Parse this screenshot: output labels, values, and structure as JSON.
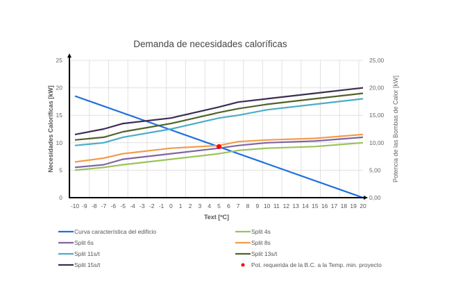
{
  "chart_data": {
    "type": "line",
    "title": "Demanda de necesidades caloríficas",
    "xlabel": "Text [ºC]",
    "ylabel": "Necesidades Caloríficas [kW]",
    "y2label": "Potencia de las Bombas de Calor [kW]",
    "xlim": [
      -10,
      20
    ],
    "ylim": [
      0,
      25
    ],
    "y2lim": [
      0,
      25
    ],
    "x_ticks": [
      -10,
      -9,
      -8,
      -7,
      -6,
      -5,
      -4,
      -3,
      -2,
      -1,
      0,
      1,
      2,
      3,
      4,
      5,
      6,
      7,
      8,
      9,
      10,
      11,
      12,
      13,
      14,
      15,
      16,
      17,
      18,
      19,
      20
    ],
    "y_ticks": [
      "0",
      "5",
      "10",
      "15",
      "20",
      "25"
    ],
    "y2_ticks": [
      "0,00",
      "5,00",
      "10,00",
      "15,00",
      "20,00",
      "25,00"
    ],
    "grid": true,
    "legend_placement": "bottom",
    "series": [
      {
        "name": "Curva característica del edificio",
        "color": "#1f6fe0",
        "x": [
          -10,
          20
        ],
        "y": [
          18.5,
          0
        ]
      },
      {
        "name": "Split 4s",
        "color": "#9bc35a",
        "x": [
          -10,
          -7,
          -5,
          0,
          5,
          7,
          10,
          15,
          20
        ],
        "y": [
          5,
          5.5,
          6,
          7,
          8,
          8.6,
          9,
          9.3,
          10
        ]
      },
      {
        "name": "Split 6s",
        "color": "#8064a2",
        "x": [
          -10,
          -7,
          -5,
          0,
          5,
          7,
          10,
          15,
          20
        ],
        "y": [
          5.5,
          6,
          7,
          8,
          9,
          9.5,
          10,
          10.3,
          11
        ]
      },
      {
        "name": "Split 8s",
        "color": "#f39b4a",
        "x": [
          -10,
          -7,
          -5,
          0,
          5,
          7,
          10,
          15,
          20
        ],
        "y": [
          6.5,
          7.2,
          8,
          9,
          9.5,
          10.2,
          10.5,
          10.8,
          11.5
        ]
      },
      {
        "name": "Split 11s/t",
        "color": "#4bacc6",
        "x": [
          -10,
          -7,
          -5,
          0,
          5,
          7,
          10,
          15,
          20
        ],
        "y": [
          9.5,
          10,
          11,
          12.5,
          14.5,
          15,
          16,
          17,
          18
        ]
      },
      {
        "name": "Split 13s/t",
        "color": "#4f6228",
        "x": [
          -10,
          -7,
          -5,
          0,
          5,
          7,
          10,
          15,
          20
        ],
        "y": [
          10.5,
          11,
          12,
          13.5,
          15.5,
          16.2,
          17,
          18,
          19
        ]
      },
      {
        "name": "Split 15s/t",
        "color": "#3b2d52",
        "x": [
          -10,
          -7,
          -5,
          0,
          5,
          7,
          10,
          15,
          20
        ],
        "y": [
          11.5,
          12.5,
          13.5,
          14.5,
          16.5,
          17.4,
          18,
          19,
          20
        ]
      }
    ],
    "points": [
      {
        "name": "Pot. requerida de la B.C. a la Temp. min. proyecto",
        "color": "#ff0000",
        "x": 5,
        "y": 9.3
      }
    ],
    "legend_order": [
      0,
      1,
      2,
      3,
      4,
      5,
      6,
      "p0"
    ]
  }
}
